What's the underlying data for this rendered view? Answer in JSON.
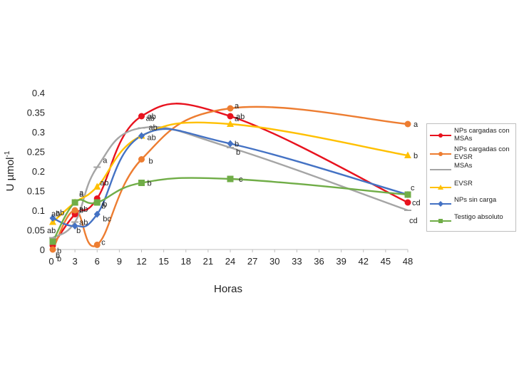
{
  "chart_data": {
    "type": "line",
    "title": "",
    "xlabel": "Horas",
    "ylabel": "U µmol",
    "ylabel_superscript": "-1",
    "xlim": [
      0,
      48
    ],
    "ylim": [
      0,
      0.4
    ],
    "xticks": [
      "0",
      "3",
      "6",
      "9",
      "12",
      "15",
      "18",
      "21",
      "24",
      "27",
      "30",
      "33",
      "36",
      "39",
      "42",
      "45",
      "48"
    ],
    "yticks": [
      "0",
      "0.05",
      "0.1",
      "0.15",
      "0.2",
      "0.25",
      "0.3",
      "0.35",
      "0.4"
    ],
    "grid": false,
    "legend_position": "right",
    "series": [
      {
        "name": "NPs cargadas con MSAs",
        "color": "#e8121e",
        "marker": "circle",
        "x": [
          0,
          3,
          6,
          12,
          24,
          48
        ],
        "y": [
          0.01,
          0.09,
          0.13,
          0.34,
          0.34,
          0.12
        ],
        "labels": [
          "b",
          "b",
          "b",
          "ab",
          "ab",
          "cd"
        ]
      },
      {
        "name": "NPs cargadas con EVSR",
        "color": "#ed7d31",
        "marker": "circle",
        "x": [
          0,
          3,
          6,
          12,
          24,
          48
        ],
        "y": [
          0.0,
          0.1,
          0.012,
          0.23,
          0.36,
          0.32
        ],
        "labels": [
          "b",
          "ab",
          "c",
          "b",
          "a",
          "a"
        ]
      },
      {
        "name": "MSAs",
        "color": "#a5a5a5",
        "marker": "dash",
        "x": [
          0,
          3,
          6,
          12,
          24,
          48
        ],
        "y": [
          0.03,
          0.07,
          0.21,
          0.31,
          0.26,
          0.1
        ],
        "labels": [
          "b",
          "ab",
          "a",
          "ab",
          "b",
          "cd"
        ]
      },
      {
        "name": "EVSR",
        "color": "#ffc000",
        "marker": "triangle",
        "x": [
          0,
          3,
          6,
          12,
          24,
          48
        ],
        "y": [
          0.07,
          0.12,
          0.16,
          0.29,
          0.32,
          0.24
        ],
        "labels": [
          "ab",
          "a",
          "ab",
          "ab",
          "a",
          "b"
        ]
      },
      {
        "name": "NPs sin carga",
        "color": "#4472c4",
        "marker": "diamond",
        "x": [
          0,
          3,
          6,
          12,
          24,
          48
        ],
        "y": [
          0.08,
          0.06,
          0.09,
          0.29,
          0.27,
          0.14
        ],
        "labels": [
          "ab",
          "b",
          "bc",
          "ab",
          "b",
          "c"
        ]
      },
      {
        "name": "Testigo absoluto",
        "color": "#70ad47",
        "marker": "square",
        "x": [
          0,
          3,
          6,
          12,
          24,
          48
        ],
        "y": [
          0.02,
          0.12,
          0.12,
          0.17,
          0.18,
          0.14
        ],
        "labels": [
          "ab",
          "a",
          "b",
          "b",
          "c",
          ""
        ]
      }
    ]
  },
  "legend": {
    "items": [
      "NPs cargadas con MSAs",
      "NPs cargadas con EVSR",
      "MSAs",
      "EVSR",
      "NPs sin carga",
      "Testigo absoluto"
    ]
  }
}
